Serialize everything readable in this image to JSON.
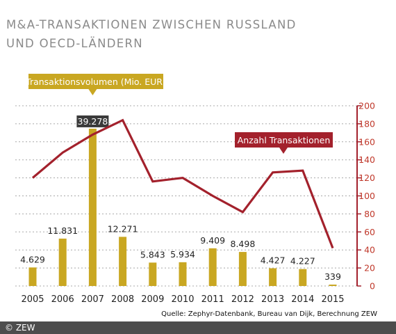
{
  "page": {
    "title_line1": "M&A-TRANSAKTIONEN ZWISCHEN RUSSLAND",
    "title_line2": "UND OECD-LÄNDERN",
    "source": "Quelle: Zephyr-Datenbank, Bureau van Dijk, Berechnung ZEW",
    "copyright": "© ZEW"
  },
  "chart_data": {
    "type": "bar",
    "categories": [
      "2005",
      "2006",
      "2007",
      "2008",
      "2009",
      "2010",
      "2011",
      "2012",
      "2013",
      "2014",
      "2015"
    ],
    "series": [
      {
        "name": "Transaktionsvolumen (Mio. EUR)",
        "type": "bar",
        "axis": "left",
        "values": [
          4629,
          11831,
          39278,
          12271,
          5843,
          5934,
          9409,
          8498,
          4427,
          4227,
          339
        ],
        "labels": [
          "4.629",
          "11.831",
          "39.278",
          "12.271",
          "5.843",
          "5.934",
          "9.409",
          "8.498",
          "4.427",
          "4.227",
          "339"
        ],
        "color": "#c9a722"
      },
      {
        "name": "Anzahl Transaktionen",
        "type": "line",
        "axis": "right",
        "values": [
          120,
          148,
          168,
          184,
          116,
          120,
          100,
          82,
          126,
          128,
          42
        ],
        "color": "#a3212c"
      }
    ],
    "y_left_max": 45000,
    "y_right": {
      "ticks": [
        0,
        20,
        40,
        60,
        80,
        100,
        120,
        140,
        160,
        180,
        200
      ],
      "min": 0,
      "max": 200
    },
    "grid": true
  }
}
